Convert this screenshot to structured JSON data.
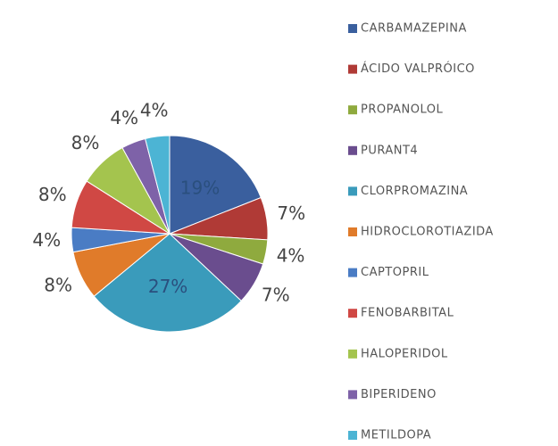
{
  "chart_data": {
    "type": "pie",
    "categories": [
      "CARBAMAZEPINA",
      "ÁCIDO VALPRÓICO",
      "PROPANOLOL",
      "PURANT4",
      "CLORPROMAZINA",
      "HIDROCLOROTIAZIDA",
      "CAPTOPRIL",
      "FENOBARBITAL",
      "HALOPERIDOL",
      "BIPERIDENO",
      "METILDOPA"
    ],
    "values": [
      19,
      7,
      4,
      7,
      27,
      8,
      4,
      8,
      8,
      4,
      4
    ],
    "value_labels": [
      "19%",
      "7%",
      "4%",
      "7%",
      "27%",
      "8%",
      "4%",
      "8%",
      "8%",
      "4%",
      "4%"
    ],
    "colors": [
      "#3a5f9e",
      "#b03a36",
      "#8faa3e",
      "#6a4d8e",
      "#3a9bbb",
      "#e07b2a",
      "#4a7cc4",
      "#d04844",
      "#a4c44e",
      "#7e62a8",
      "#4cb4d4"
    ],
    "legend": "right"
  }
}
